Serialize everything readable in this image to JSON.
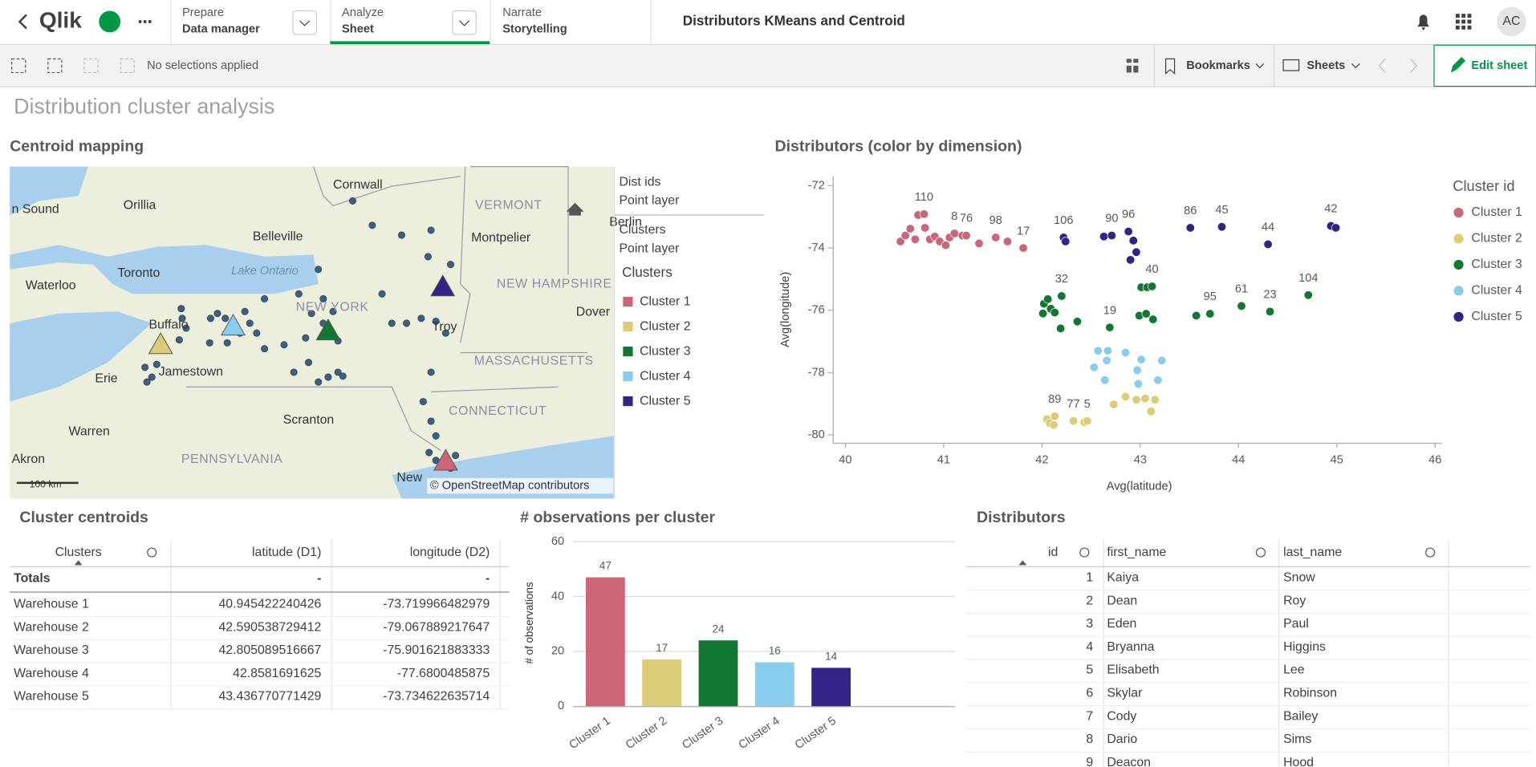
{
  "header": {
    "logo": "Qlik",
    "tabs": [
      {
        "label": "Prepare",
        "value": "Data manager"
      },
      {
        "label": "Analyze",
        "value": "Sheet"
      },
      {
        "label": "Narrate",
        "value": "Storytelling"
      }
    ],
    "app_title": "Distributors KMeans and Centroid",
    "avatar": "AC"
  },
  "toolbar": {
    "selections": "No selections applied",
    "bookmarks": "Bookmarks",
    "sheets": "Sheets",
    "edit": "Edit sheet"
  },
  "sheet_title": "Distribution cluster analysis",
  "map": {
    "title": "Centroid mapping",
    "layers": [
      {
        "name": "Dist ids",
        "kind": "Point layer"
      },
      {
        "name": "Clusters",
        "kind": "Point layer"
      }
    ],
    "legend_title": "Clusters",
    "legend": [
      {
        "name": "Cluster 1",
        "color": "#cc6677"
      },
      {
        "name": "Cluster 2",
        "color": "#ddcc77"
      },
      {
        "name": "Cluster 3",
        "color": "#117733"
      },
      {
        "name": "Cluster 4",
        "color": "#88ccee"
      },
      {
        "name": "Cluster 5",
        "color": "#332288"
      }
    ],
    "places": [
      "n Sound",
      "Orillia",
      "Cornwall",
      "VERMONT",
      "Berlin",
      "Belleville",
      "Montpelier",
      "Toronto",
      "Lake Ontario",
      "Waterloo",
      "NEW HAMPSHIRE",
      "NEW YORK",
      "Buffalo",
      "Troy",
      "Dover",
      "MASSACHUSETTS",
      "Erie",
      "Jamestown",
      "CONNECTICUT",
      "Warren",
      "Scranton",
      "PENNSYLVANIA",
      "Akron",
      "New"
    ],
    "scale": "100 km",
    "attribution": "© OpenStreetMap contributors"
  },
  "chart_data": [
    {
      "type": "scatter",
      "title": "Distributors (color by dimension)",
      "x_label": "Avg(latitude)",
      "y_label": "Avg(longitude)",
      "legend_title": "Cluster id",
      "xlim": [
        40,
        46
      ],
      "ylim": [
        -80.25,
        -71.7
      ],
      "xticks": [
        40,
        41,
        42,
        43,
        44,
        45,
        46
      ],
      "yticks": [
        -80,
        -78,
        -76,
        -74,
        -72
      ],
      "series": [
        {
          "name": "Cluster 1",
          "color": "#cc6677",
          "x": [
            40.56,
            40.61,
            40.66,
            40.71,
            40.74,
            40.8,
            40.81,
            40.86,
            40.91,
            40.96,
            41.02,
            41.06,
            41.11,
            41.19,
            41.23,
            41.36,
            41.53,
            41.65,
            41.81
          ],
          "values": [
            -73.79,
            -73.6,
            -73.38,
            -73.72,
            -72.94,
            -72.91,
            -73.35,
            -73.72,
            -73.63,
            -73.79,
            -73.91,
            -73.66,
            -73.53,
            -73.6,
            -73.6,
            -73.85,
            -73.66,
            -73.79,
            -74.0
          ],
          "labels": [
            null,
            null,
            null,
            null,
            null,
            110,
            null,
            null,
            null,
            null,
            null,
            null,
            8,
            null,
            76,
            null,
            98,
            null,
            17
          ]
        },
        {
          "name": "Cluster 2",
          "color": "#ddcc77",
          "x": [
            42.05,
            42.08,
            42.13,
            42.12,
            42.32,
            42.43,
            42.46,
            42.73,
            42.85,
            42.96,
            43.05,
            43.15,
            43.11
          ],
          "values": [
            -79.49,
            -79.62,
            -79.4,
            -79.68,
            -79.55,
            -79.59,
            -79.55,
            -79.02,
            -78.77,
            -78.87,
            -78.83,
            -78.87,
            -79.24
          ],
          "labels": [
            null,
            null,
            89,
            null,
            77,
            null,
            5,
            null,
            null,
            null,
            null,
            null,
            null
          ]
        },
        {
          "name": "Cluster 3",
          "color": "#117733",
          "x": [
            42.02,
            42.06,
            42.09,
            42.01,
            42.13,
            42.2,
            42.19,
            42.36,
            42.69,
            43.01,
            43.07,
            43.12,
            42.99,
            43.06,
            43.13,
            43.57,
            43.71,
            44.03,
            44.32,
            44.71
          ],
          "values": [
            -75.79,
            -75.64,
            -75.95,
            -76.1,
            -76.07,
            -75.54,
            -76.58,
            -76.36,
            -76.55,
            -75.26,
            -75.26,
            -75.23,
            -76.17,
            -76.11,
            -76.29,
            -76.17,
            -76.11,
            -75.86,
            -76.04,
            -75.51
          ],
          "labels": [
            null,
            null,
            null,
            null,
            null,
            32,
            null,
            null,
            19,
            null,
            null,
            40,
            null,
            null,
            null,
            null,
            95,
            61,
            23,
            104
          ]
        },
        {
          "name": "Cluster 4",
          "color": "#88ccee",
          "x": [
            42.57,
            42.66,
            42.53,
            42.85,
            42.64,
            43.01,
            43.22,
            42.97,
            43.18,
            42.98,
            42.67
          ],
          "values": [
            -77.3,
            -77.61,
            -77.83,
            -77.36,
            -78.24,
            -77.58,
            -77.61,
            -77.92,
            -78.24,
            -78.36,
            -77.3
          ]
        },
        {
          "name": "Cluster 5",
          "color": "#332288",
          "x": [
            42.22,
            42.24,
            42.63,
            42.71,
            42.88,
            42.93,
            42.9,
            42.96,
            43.51,
            43.83,
            44.3,
            44.94,
            44.99
          ],
          "values": [
            -73.66,
            -73.79,
            -73.63,
            -73.6,
            -73.47,
            -73.76,
            -74.38,
            -74.13,
            -73.35,
            -73.32,
            -73.88,
            -73.29,
            -73.35
          ],
          "labels": [
            106,
            null,
            null,
            90,
            96,
            null,
            null,
            null,
            86,
            45,
            44,
            42,
            null
          ]
        }
      ]
    },
    {
      "type": "bar",
      "title": "# observations per cluster",
      "y_label": "# of observations",
      "categories": [
        "Cluster 1",
        "Cluster 2",
        "Cluster 3",
        "Cluster 4",
        "Cluster 5"
      ],
      "values": [
        47,
        17,
        24,
        16,
        14
      ],
      "colors": [
        "#cc6677",
        "#ddcc77",
        "#117733",
        "#88ccee",
        "#332288"
      ],
      "ylim": [
        0,
        60
      ],
      "yticks": [
        0,
        20,
        40,
        60
      ],
      "grid": true
    }
  ],
  "centroids_table": {
    "title": "Cluster centroids",
    "columns": [
      "Clusters",
      "latitude (D1)",
      "longitude (D2)"
    ],
    "totals": [
      "Totals",
      "-",
      "-"
    ],
    "rows": [
      [
        "Warehouse 1",
        "40.945422240426",
        "-73.719966482979"
      ],
      [
        "Warehouse 2",
        "42.590538729412",
        "-79.067889217647"
      ],
      [
        "Warehouse 3",
        "42.805089516667",
        "-75.901621883333"
      ],
      [
        "Warehouse 4",
        "42.8581691625",
        "-77.6800485875"
      ],
      [
        "Warehouse 5",
        "43.436770771429",
        "-73.734622635714"
      ]
    ]
  },
  "distributors_table": {
    "title": "Distributors",
    "columns": [
      "id",
      "first_name",
      "last_name"
    ],
    "rows": [
      [
        1,
        "Kaiya",
        "Snow"
      ],
      [
        2,
        "Dean",
        "Roy"
      ],
      [
        3,
        "Eden",
        "Paul"
      ],
      [
        4,
        "Bryanna",
        "Higgins"
      ],
      [
        5,
        "Elisabeth",
        "Lee"
      ],
      [
        6,
        "Skylar",
        "Robinson"
      ],
      [
        7,
        "Cody",
        "Bailey"
      ],
      [
        8,
        "Dario",
        "Sims"
      ],
      [
        9,
        "Deacon",
        "Hood"
      ]
    ]
  }
}
